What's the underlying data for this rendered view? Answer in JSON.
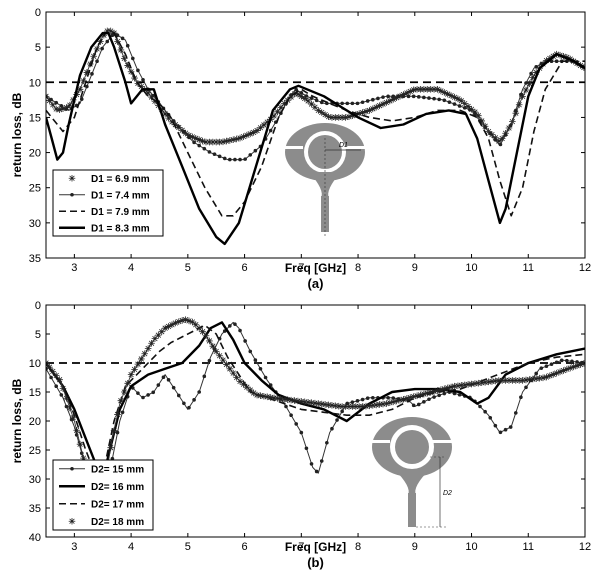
{
  "chart_data": [
    {
      "type": "line",
      "caption": "(a)",
      "xlabel": "Freq [GHz]",
      "ylabel": "return loss, dB",
      "xlim": [
        2.5,
        12
      ],
      "ylim": [
        0,
        35
      ],
      "y_inverted": true,
      "xticks": [
        3,
        4,
        5,
        6,
        7,
        8,
        9,
        10,
        11,
        12
      ],
      "yticks": [
        0,
        5,
        10,
        15,
        20,
        25,
        30,
        35
      ],
      "grid": false,
      "legend_position": "bottom-left",
      "reference_line": {
        "y": 10,
        "style": "dashed"
      },
      "inset": {
        "dimension_label": "D1"
      },
      "series": [
        {
          "name": "D1 = 6.9 mm",
          "style": "asterisk",
          "color": "#333333",
          "x": [
            2.5,
            2.7,
            2.9,
            3.1,
            3.3,
            3.5,
            3.6,
            3.7,
            3.9,
            4.1,
            4.3,
            4.5,
            4.7,
            5.0,
            5.3,
            5.6,
            5.9,
            6.2,
            6.5,
            6.7,
            6.9,
            7.1,
            7.3,
            7.5,
            7.8,
            8.2,
            8.6,
            9.0,
            9.4,
            9.8,
            10.1,
            10.3,
            10.5,
            10.7,
            10.9,
            11.1,
            11.3,
            11.5,
            11.7,
            12.0
          ],
          "y": [
            12,
            14,
            13.5,
            11,
            7,
            3.5,
            2.5,
            3,
            7,
            10,
            11.5,
            13.5,
            15.5,
            17.5,
            18.5,
            18.5,
            18,
            17,
            15,
            13,
            11.5,
            12.5,
            14,
            15,
            15,
            14,
            12.5,
            11,
            11,
            12.5,
            14.5,
            17,
            18.5,
            16,
            12,
            9,
            7,
            6,
            6.5,
            8
          ]
        },
        {
          "name": "D1 = 7.4 mm",
          "style": "dotted-line",
          "color": "#333333",
          "x": [
            2.5,
            2.7,
            2.9,
            3.1,
            3.3,
            3.5,
            3.7,
            3.9,
            4.1,
            4.3,
            4.5,
            4.8,
            5.1,
            5.4,
            5.7,
            6.0,
            6.3,
            6.6,
            6.8,
            6.9,
            7.1,
            7.4,
            7.7,
            8.0,
            8.5,
            9.0,
            9.5,
            10.0,
            10.3,
            10.5,
            10.7,
            10.9,
            11.1,
            11.3,
            11.5,
            11.8,
            12.0
          ],
          "y": [
            12,
            13,
            14,
            13,
            9,
            5,
            3,
            4,
            8,
            11,
            13,
            16,
            18.5,
            20,
            21,
            21,
            19,
            15,
            12,
            11,
            12,
            13,
            13,
            13,
            12,
            12,
            12.5,
            14,
            17,
            19,
            16,
            11,
            8,
            7,
            7,
            7,
            8
          ]
        },
        {
          "name": "D1 = 7.9 mm",
          "style": "dashed",
          "color": "#111111",
          "x": [
            2.5,
            2.8,
            3.0,
            3.2,
            3.4,
            3.55,
            3.7,
            3.9,
            4.1,
            4.3,
            4.5,
            4.7,
            5.0,
            5.3,
            5.6,
            5.8,
            6.0,
            6.3,
            6.6,
            6.8,
            7.0,
            7.2,
            7.5,
            7.8,
            8.2,
            8.6,
            9.0,
            9.4,
            9.8,
            10.1,
            10.3,
            10.5,
            10.7,
            10.9,
            11.1,
            11.3,
            11.6,
            12.0
          ],
          "y": [
            14,
            17,
            15,
            10,
            5,
            3,
            3,
            6,
            10,
            12,
            13,
            15,
            20,
            25,
            29,
            29,
            27,
            22,
            15,
            12,
            11,
            12,
            13,
            14,
            15,
            15.5,
            15,
            14,
            14,
            15,
            18,
            24,
            29,
            25,
            17,
            11,
            7,
            7
          ]
        },
        {
          "name": "D1 = 8.3 mm",
          "style": "thick-solid",
          "color": "#000000",
          "x": [
            2.5,
            2.6,
            2.7,
            2.8,
            2.9,
            3.1,
            3.3,
            3.5,
            3.6,
            3.7,
            3.9,
            4.0,
            4.2,
            4.4,
            4.6,
            4.9,
            5.2,
            5.5,
            5.65,
            5.9,
            6.2,
            6.5,
            6.8,
            6.95,
            7.1,
            7.4,
            7.7,
            8.0,
            8.4,
            8.8,
            9.2,
            9.6,
            9.9,
            10.1,
            10.3,
            10.5,
            10.6,
            10.8,
            11.0,
            11.2,
            11.5,
            11.8,
            12.0
          ],
          "y": [
            15,
            18,
            21,
            20,
            16,
            9,
            5,
            3,
            3,
            5,
            10,
            13,
            11,
            11,
            16,
            22,
            28,
            32,
            33,
            30,
            22,
            14,
            11,
            10.5,
            11,
            12,
            13.5,
            15,
            16.5,
            16,
            14.5,
            14,
            14.5,
            18,
            24,
            30,
            28,
            20,
            12,
            8,
            6,
            7,
            8
          ]
        }
      ]
    },
    {
      "type": "line",
      "caption": "(b)",
      "xlabel": "Freq [GHz]",
      "ylabel": "return loss, dB",
      "xlim": [
        2.5,
        12
      ],
      "ylim": [
        0,
        40
      ],
      "y_inverted": true,
      "xticks": [
        3,
        4,
        5,
        6,
        7,
        8,
        9,
        10,
        11,
        12
      ],
      "yticks": [
        0,
        5,
        10,
        15,
        20,
        25,
        30,
        35,
        40
      ],
      "grid": false,
      "legend_position": "bottom-left",
      "reference_line": {
        "y": 10,
        "style": "dashed"
      },
      "inset": {
        "dimension_label": "D2"
      },
      "series": [
        {
          "name": "D2= 15 mm",
          "style": "dotted-line",
          "color": "#333333",
          "x": [
            2.5,
            2.8,
            3.0,
            3.2,
            3.4,
            3.5,
            3.6,
            3.8,
            4.0,
            4.2,
            4.4,
            4.6,
            4.8,
            5.0,
            5.2,
            5.4,
            5.6,
            5.8,
            5.9,
            6.1,
            6.4,
            6.7,
            7.0,
            7.2,
            7.3,
            7.5,
            7.8,
            8.2,
            8.6,
            8.9,
            9.0,
            9.3,
            9.6,
            10.0,
            10.3,
            10.5,
            10.7,
            10.9,
            11.2,
            11.6,
            12.0
          ],
          "y": [
            11,
            16,
            21,
            28,
            33,
            35,
            30,
            20,
            14,
            16,
            15,
            12,
            15,
            18,
            15,
            9,
            5,
            3,
            4,
            8,
            13,
            17,
            22,
            28,
            29,
            22,
            17,
            16,
            16,
            16.5,
            17.5,
            16,
            15,
            16,
            19,
            22,
            21,
            15,
            11,
            9.5,
            10
          ]
        },
        {
          "name": "D2= 16 mm",
          "style": "thick-solid",
          "color": "#000000",
          "x": [
            2.5,
            2.8,
            3.0,
            3.2,
            3.4,
            3.5,
            3.6,
            3.8,
            4.0,
            4.3,
            4.6,
            4.9,
            5.2,
            5.4,
            5.6,
            5.8,
            6.0,
            6.3,
            6.6,
            7.0,
            7.4,
            7.8,
            8.2,
            8.6,
            9.0,
            9.4,
            9.8,
            10.1,
            10.3,
            10.6,
            11.0,
            11.5,
            12.0
          ],
          "y": [
            10,
            14,
            18,
            23,
            28,
            30,
            26,
            18,
            14,
            12,
            11,
            10,
            7,
            4,
            3,
            6,
            10,
            13,
            15.5,
            17,
            18,
            20,
            17,
            15,
            14.5,
            14.5,
            15,
            17,
            16,
            12,
            10,
            8.5,
            7.5
          ]
        },
        {
          "name": "D2= 17 mm",
          "style": "dashed",
          "color": "#111111",
          "x": [
            2.5,
            2.8,
            3.0,
            3.2,
            3.4,
            3.45,
            3.55,
            3.7,
            3.9,
            4.1,
            4.3,
            4.5,
            4.7,
            4.9,
            5.1,
            5.3,
            5.5,
            5.7,
            5.9,
            6.1,
            6.4,
            6.7,
            7.0,
            7.4,
            7.8,
            8.2,
            8.6,
            9.0,
            9.4,
            9.8,
            10.2,
            10.6,
            11.0,
            11.5,
            12.0
          ],
          "y": [
            10,
            14,
            19,
            25,
            30,
            30,
            27,
            20,
            14,
            12,
            10,
            8,
            6.5,
            5.5,
            4.5,
            3.5,
            5,
            9,
            12,
            15,
            16,
            17,
            18,
            18.5,
            19,
            19,
            18,
            16,
            15,
            14.5,
            13,
            11.5,
            10,
            9,
            8.5
          ]
        },
        {
          "name": "D2= 18 mm",
          "style": "asterisk",
          "color": "#333333",
          "x": [
            2.5,
            2.75,
            3.0,
            3.2,
            3.35,
            3.45,
            3.55,
            3.65,
            3.8,
            4.0,
            4.2,
            4.4,
            4.6,
            4.8,
            4.95,
            5.1,
            5.3,
            5.5,
            5.7,
            5.9,
            6.2,
            6.5,
            6.9,
            7.3,
            7.7,
            8.1,
            8.5,
            8.9,
            9.3,
            9.7,
            10.1,
            10.5,
            10.9,
            11.3,
            11.7,
            12.0
          ],
          "y": [
            10,
            13,
            20,
            28,
            33,
            34,
            30,
            24,
            17,
            12,
            9,
            6,
            4,
            3,
            2.5,
            3,
            5,
            8,
            10.5,
            13,
            15.5,
            16,
            16.5,
            17,
            17.5,
            17.5,
            17,
            16,
            15,
            14,
            13.5,
            13,
            13,
            12.5,
            11,
            10
          ]
        }
      ]
    }
  ]
}
